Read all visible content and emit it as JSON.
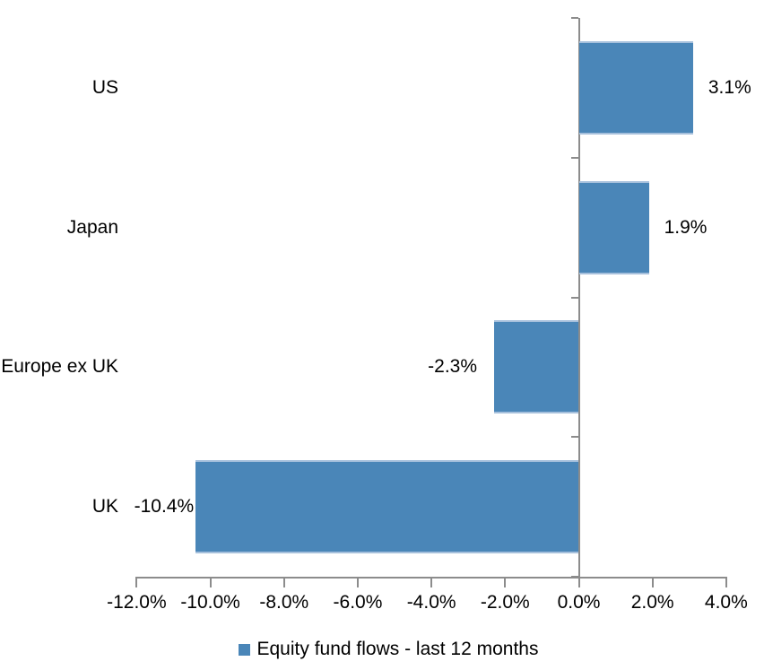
{
  "chart_data": {
    "type": "bar",
    "orientation": "horizontal",
    "categories": [
      "US",
      "Japan",
      "Europe ex UK",
      "UK"
    ],
    "values": [
      3.1,
      1.9,
      -2.3,
      -10.4
    ],
    "value_labels": [
      "3.1%",
      "1.9%",
      "-2.3%",
      "-10.4%"
    ],
    "series": [
      {
        "name": "Equity fund flows - last 12 months",
        "values": [
          3.1,
          1.9,
          -2.3,
          -10.4
        ]
      }
    ],
    "xlim": [
      -12,
      4
    ],
    "x_tick_values": [
      -12,
      -10,
      -8,
      -6,
      -4,
      -2,
      0,
      2,
      4
    ],
    "x_tick_labels": [
      "-12.0%",
      "-10.0%",
      "-8.0%",
      "-6.0%",
      "-4.0%",
      "-2.0%",
      "0.0%",
      "2.0%",
      "4.0%"
    ],
    "grid": false,
    "legend_position": "bottom",
    "bar_color": "#4A86B8",
    "bar_edge_color": "#A6C0DC",
    "axis_color": "#8C8C8C",
    "text_color": "#000000"
  },
  "legend": {
    "label": "Equity fund flows - last 12 months"
  }
}
